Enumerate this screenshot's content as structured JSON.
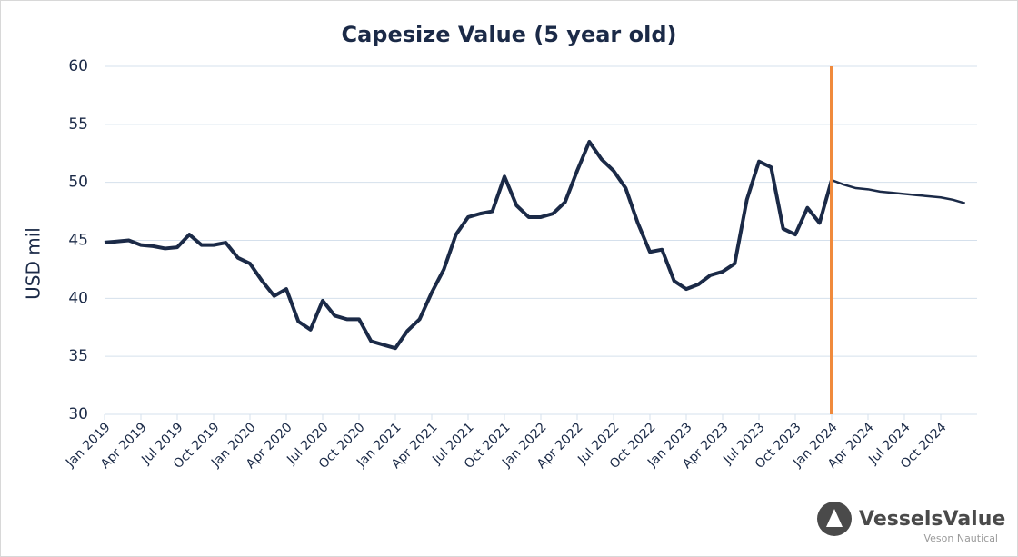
{
  "chart_data": {
    "type": "line",
    "title": "Capesize Value (5 year old)",
    "y_label": "USD mil",
    "x": [
      "Jan 2019",
      "Feb 2019",
      "Mar 2019",
      "Apr 2019",
      "May 2019",
      "Jun 2019",
      "Jul 2019",
      "Aug 2019",
      "Sep 2019",
      "Oct 2019",
      "Nov 2019",
      "Dec 2019",
      "Jan 2020",
      "Feb 2020",
      "Mar 2020",
      "Apr 2020",
      "May 2020",
      "Jun 2020",
      "Jul 2020",
      "Aug 2020",
      "Sep 2020",
      "Oct 2020",
      "Nov 2020",
      "Dec 2020",
      "Jan 2021",
      "Feb 2021",
      "Mar 2021",
      "Apr 2021",
      "May 2021",
      "Jun 2021",
      "Jul 2021",
      "Aug 2021",
      "Sep 2021",
      "Oct 2021",
      "Nov 2021",
      "Dec 2021",
      "Jan 2022",
      "Feb 2022",
      "Mar 2022",
      "Apr 2022",
      "May 2022",
      "Jun 2022",
      "Jul 2022",
      "Aug 2022",
      "Sep 2022",
      "Oct 2022",
      "Nov 2022",
      "Dec 2022",
      "Jan 2023",
      "Feb 2023",
      "Mar 2023",
      "Apr 2023",
      "May 2023",
      "Jun 2023",
      "Jul 2023",
      "Aug 2023",
      "Sep 2023",
      "Oct 2023",
      "Nov 2023",
      "Dec 2023",
      "Jan 2024",
      "Feb 2024",
      "Mar 2024",
      "Apr 2024",
      "May 2024",
      "Jun 2024",
      "Jul 2024",
      "Aug 2024",
      "Sep 2024",
      "Oct 2024",
      "Nov 2024",
      "Dec 2024"
    ],
    "series": [
      {
        "color": "#1b2a47",
        "values": [
          44.8,
          44.9,
          45.0,
          44.6,
          44.5,
          44.3,
          44.4,
          45.5,
          44.6,
          44.6,
          44.8,
          43.5,
          43.0,
          41.5,
          40.2,
          40.8,
          38.0,
          37.3,
          39.8,
          38.5,
          38.2,
          38.2,
          36.3,
          36.0,
          35.7,
          37.2,
          38.2,
          40.5,
          42.5,
          45.5,
          47.0,
          47.3,
          47.5,
          50.5,
          48.0,
          47.0,
          47.0,
          47.3,
          48.3,
          51.0,
          53.5,
          52.0,
          51.0,
          49.5,
          46.5,
          44.0,
          44.2,
          41.5,
          40.8,
          41.2,
          42.0,
          42.3,
          43.0,
          48.5,
          51.8,
          51.3,
          46.0,
          45.5,
          47.8,
          46.5,
          50.2,
          null,
          null,
          null,
          null,
          null,
          null,
          null,
          null,
          null,
          null,
          null
        ]
      },
      {
        "color": "#1b2a47",
        "values": [
          null,
          null,
          null,
          null,
          null,
          null,
          null,
          null,
          null,
          null,
          null,
          null,
          null,
          null,
          null,
          null,
          null,
          null,
          null,
          null,
          null,
          null,
          null,
          null,
          null,
          null,
          null,
          null,
          null,
          null,
          null,
          null,
          null,
          null,
          null,
          null,
          null,
          null,
          null,
          null,
          null,
          null,
          null,
          null,
          null,
          null,
          null,
          null,
          null,
          null,
          null,
          null,
          null,
          null,
          null,
          null,
          null,
          null,
          null,
          null,
          50.2,
          49.8,
          49.5,
          49.4,
          49.2,
          49.1,
          49.0,
          48.9,
          48.8,
          48.7,
          48.5,
          48.2
        ]
      }
    ],
    "xticks": [
      "Jan 2019",
      "Apr 2019",
      "Jul 2019",
      "Oct 2019",
      "Jan 2020",
      "Apr 2020",
      "Jul 2020",
      "Oct 2020",
      "Jan 2021",
      "Apr 2021",
      "Jul 2021",
      "Oct 2021",
      "Jan 2022",
      "Apr 2022",
      "Jul 2022",
      "Oct 2022",
      "Jan 2023",
      "Apr 2023",
      "Jul 2023",
      "Oct 2023",
      "Jan 2024",
      "Apr 2024",
      "Jul 2024",
      "Oct 2024"
    ],
    "marker_x": "Jan 2024",
    "marker_color": "#f08a3c",
    "ylim": [
      30,
      60
    ],
    "yticks": [
      30,
      35,
      40,
      45,
      50,
      55,
      60
    ],
    "grid": true
  },
  "logo": {
    "name": "VesselsValue",
    "sub": "Veson Nautical"
  }
}
